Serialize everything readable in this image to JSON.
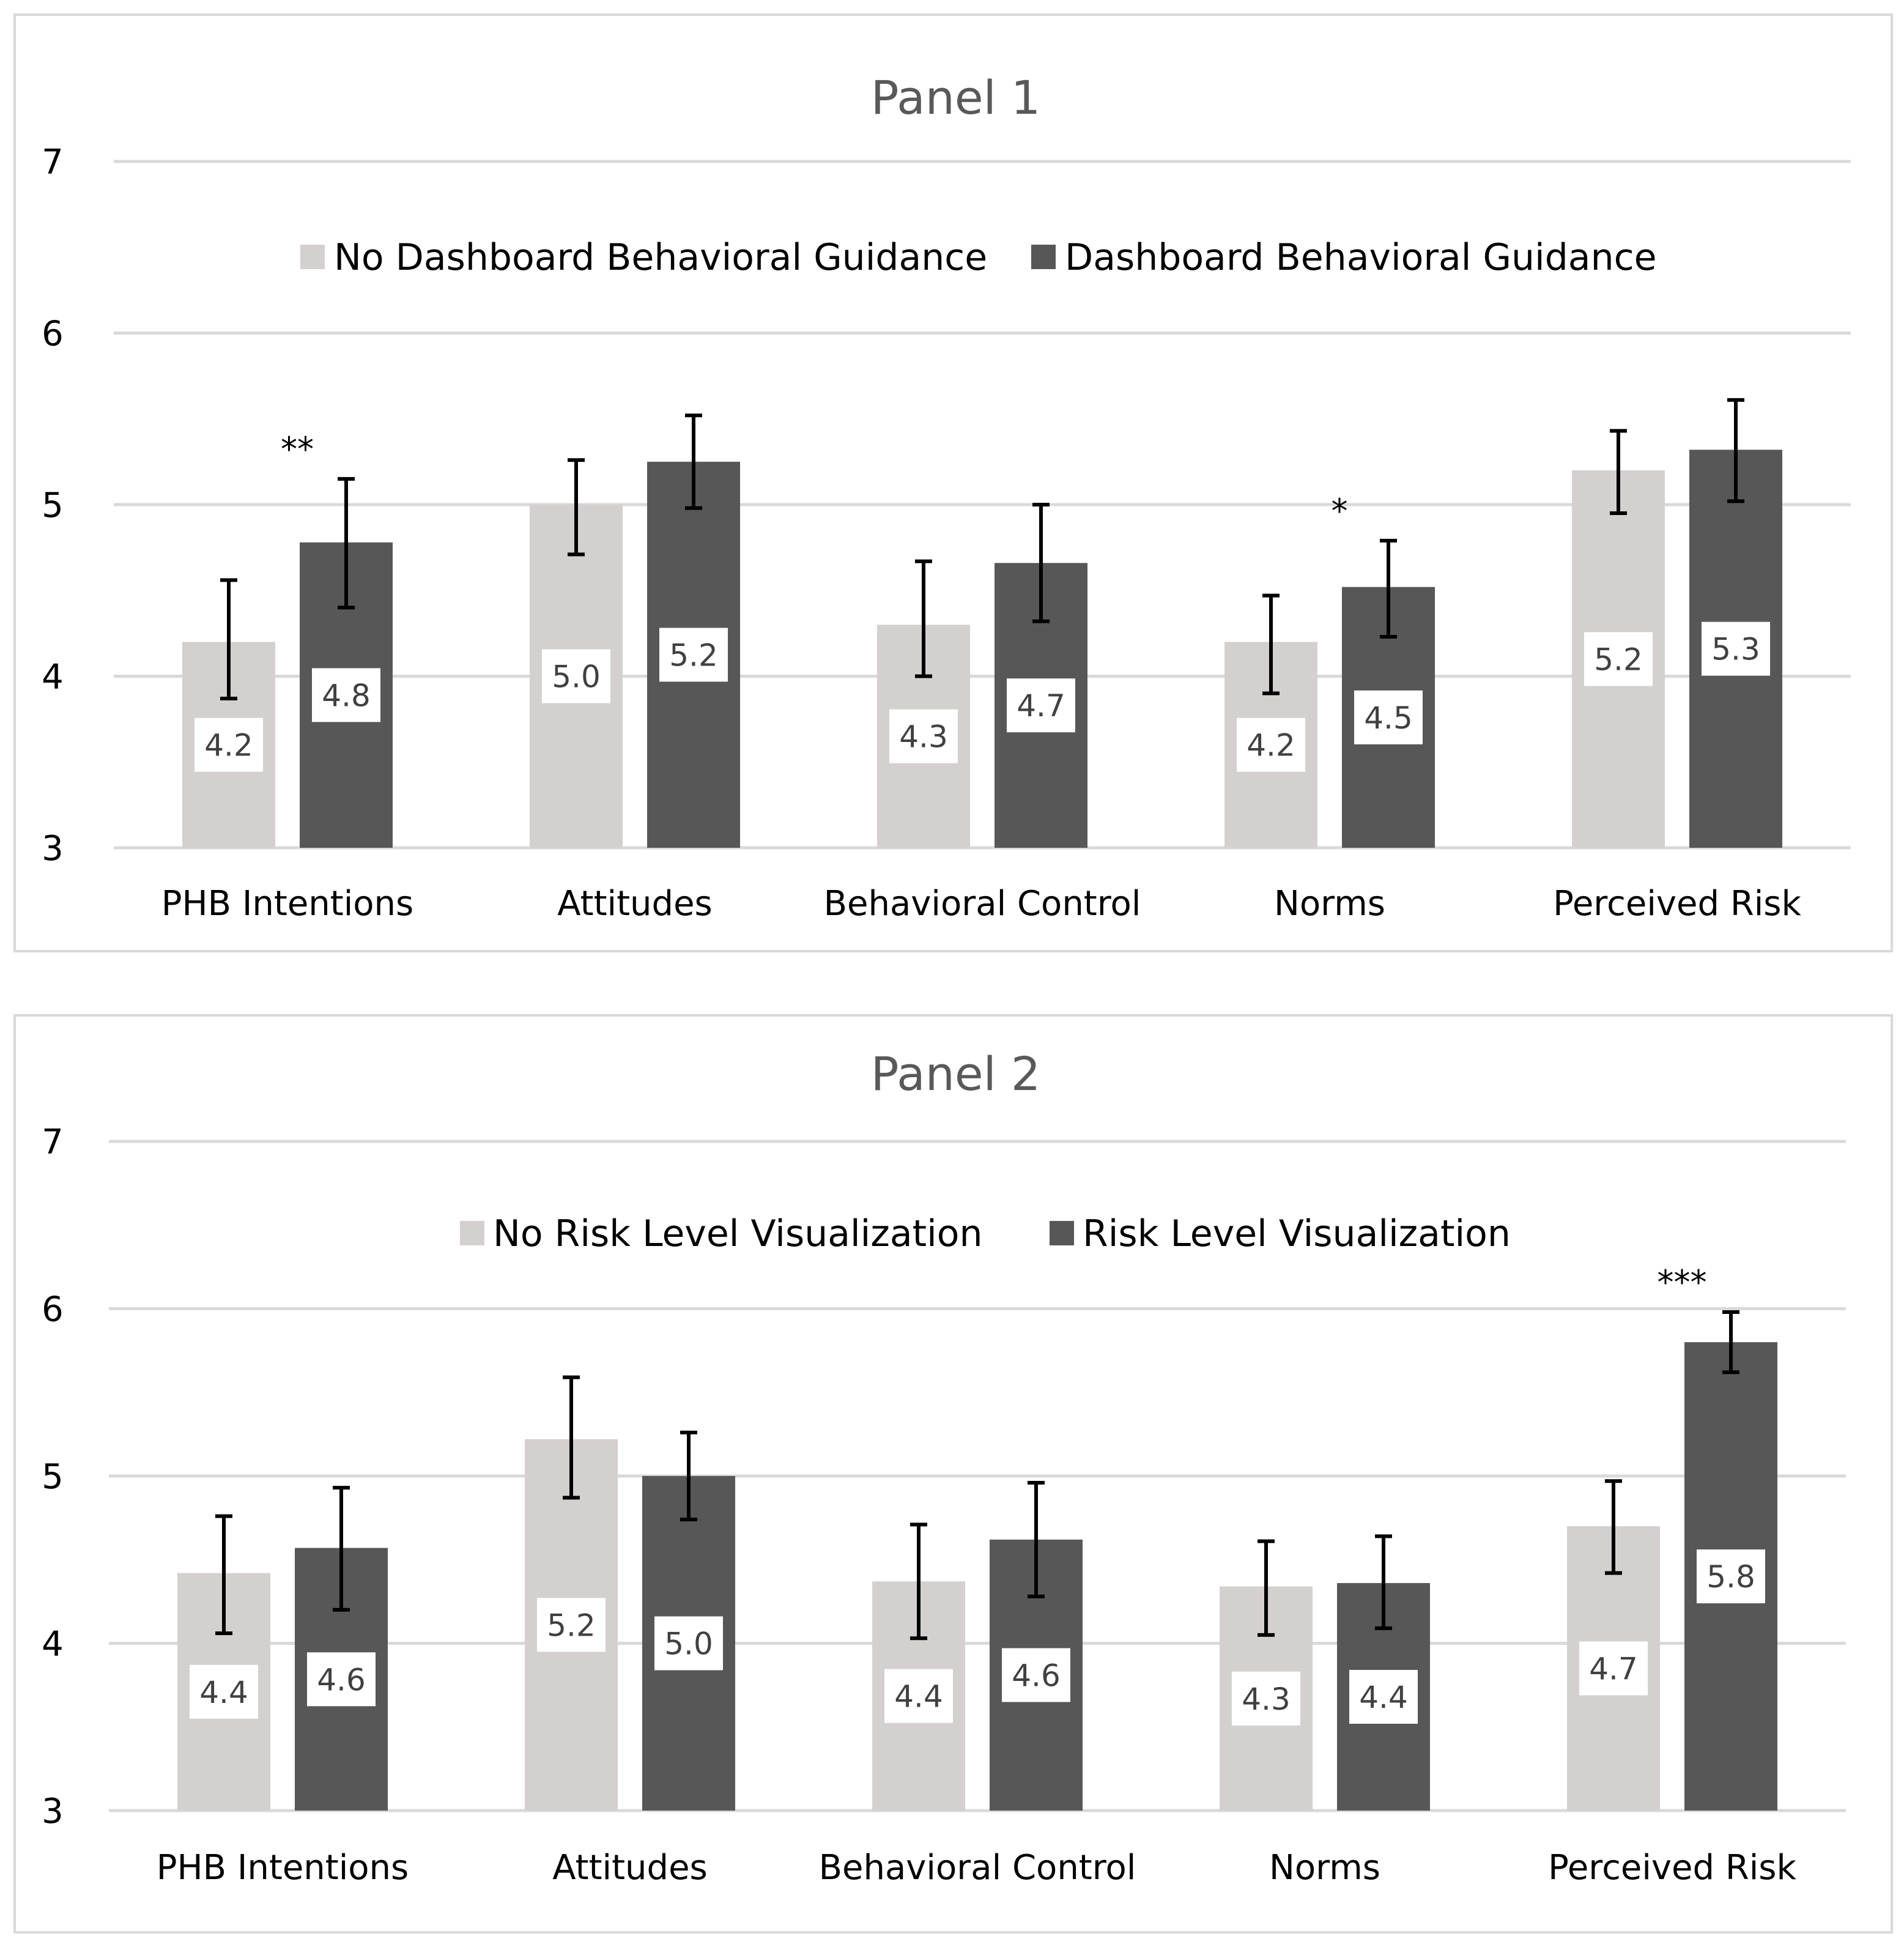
{
  "colors": {
    "light": "#d4d0cf",
    "dark": "#575757",
    "grid": "#d9d9d9",
    "error": "#000000"
  },
  "chart_data": [
    {
      "type": "bar",
      "title": "Panel 1",
      "categories": [
        "PHB Intentions",
        "Attitudes",
        "Behavioral Control",
        "Norms",
        "Perceived Risk"
      ],
      "ylim": [
        3,
        7
      ],
      "yticks": [
        3,
        4,
        5,
        6,
        7
      ],
      "grid": true,
      "legend_position": "top",
      "series": [
        {
          "name": "No Dashboard Behavioral Guidance",
          "color": "light",
          "values": [
            4.2,
            5.0,
            4.3,
            4.2,
            5.2
          ],
          "labels": [
            "4.2",
            "5.0",
            "4.3",
            "4.2",
            "5.2"
          ],
          "error_low": [
            3.87,
            4.71,
            4.0,
            3.9,
            4.95
          ],
          "error_high": [
            4.56,
            5.26,
            4.67,
            4.47,
            5.43
          ]
        },
        {
          "name": "Dashboard Behavioral Guidance",
          "color": "dark",
          "values": [
            4.78,
            5.25,
            4.66,
            4.52,
            5.32
          ],
          "labels": [
            "4.8",
            "5.2",
            "4.7",
            "4.5",
            "5.3"
          ],
          "error_low": [
            4.4,
            4.98,
            4.32,
            4.23,
            5.02
          ],
          "error_high": [
            5.15,
            5.52,
            5.0,
            4.79,
            5.61
          ]
        }
      ],
      "annotations": [
        {
          "category_index": 0,
          "text": "**"
        },
        {
          "category_index": 3,
          "text": "*"
        }
      ]
    },
    {
      "type": "bar",
      "title": "Panel 2",
      "categories": [
        "PHB Intentions",
        "Attitudes",
        "Behavioral Control",
        "Norms",
        "Perceived Risk"
      ],
      "ylim": [
        3,
        7
      ],
      "yticks": [
        3,
        4,
        5,
        6,
        7
      ],
      "grid": true,
      "legend_position": "top",
      "series": [
        {
          "name": "No Risk Level Visualization",
          "color": "light",
          "values": [
            4.42,
            5.22,
            4.37,
            4.34,
            4.7
          ],
          "labels": [
            "4.4",
            "5.2",
            "4.4",
            "4.3",
            "4.7"
          ],
          "error_low": [
            4.06,
            4.87,
            4.03,
            4.05,
            4.42
          ],
          "error_high": [
            4.76,
            5.59,
            4.71,
            4.61,
            4.97
          ]
        },
        {
          "name": "Risk Level Visualization",
          "color": "dark",
          "values": [
            4.57,
            5.0,
            4.62,
            4.36,
            5.8
          ],
          "labels": [
            "4.6",
            "5.0",
            "4.6",
            "4.4",
            "5.8"
          ],
          "error_low": [
            4.2,
            4.74,
            4.28,
            4.09,
            5.62
          ],
          "error_high": [
            4.93,
            5.26,
            4.96,
            4.64,
            5.98
          ]
        }
      ],
      "annotations": [
        {
          "category_index": 4,
          "text": "***"
        }
      ]
    }
  ]
}
